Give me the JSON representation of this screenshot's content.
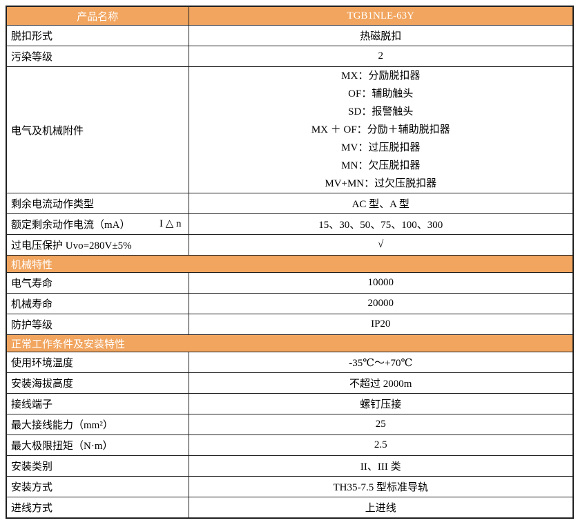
{
  "colors": {
    "accent_orange": "#F1A55F",
    "header_text": "#FFFFFF",
    "border": "#1F1F1F",
    "body_text": "#000000"
  },
  "table": {
    "header": {
      "product_label": "产品名称",
      "product_model": "TGB1NLE-63Y"
    },
    "sections": [
      {
        "title": "",
        "rows": [
          {
            "label": "脱扣形式",
            "value": "热磁脱扣"
          },
          {
            "label": "污染等级",
            "value": "2"
          },
          {
            "label": "电气及机械附件",
            "value_lines": [
              "MX：分励脱扣器",
              "OF：辅助触头",
              "SD：报警触头",
              "MX ＋ OF：分励＋辅助脱扣器",
              "MV：过压脱扣器",
              "MN：欠压脱扣器",
              "MV+MN：过欠压脱扣器"
            ]
          },
          {
            "label": "剩余电流动作类型",
            "value": "AC 型、A 型"
          },
          {
            "label": "额定剩余动作电流（mA）",
            "label_right": "I △ n",
            "value": "15、30、50、75、100、300"
          },
          {
            "label": "过电压保护 Uvo=280V±5%",
            "value": "√"
          }
        ]
      },
      {
        "title": "机械特性",
        "rows": [
          {
            "label": "电气寿命",
            "value": "10000"
          },
          {
            "label": "机械寿命",
            "value": "20000"
          },
          {
            "label": "防护等级",
            "value": "IP20"
          }
        ]
      },
      {
        "title": "正常工作条件及安装特性",
        "rows": [
          {
            "label": "使用环境温度",
            "value": "-35℃～+70℃"
          },
          {
            "label": "安装海拔高度",
            "value": "不超过 2000m"
          },
          {
            "label": "接线端子",
            "value": "螺钉压接"
          },
          {
            "label": "最大接线能力（mm²）",
            "value": "25"
          },
          {
            "label": "最大极限扭矩（N·m）",
            "value": "2.5"
          },
          {
            "label": "安装类别",
            "value": "II、III 类"
          },
          {
            "label": "安装方式",
            "value": "TH35-7.5 型标准导轨"
          },
          {
            "label": "进线方式",
            "value": "上进线"
          }
        ]
      }
    ]
  }
}
